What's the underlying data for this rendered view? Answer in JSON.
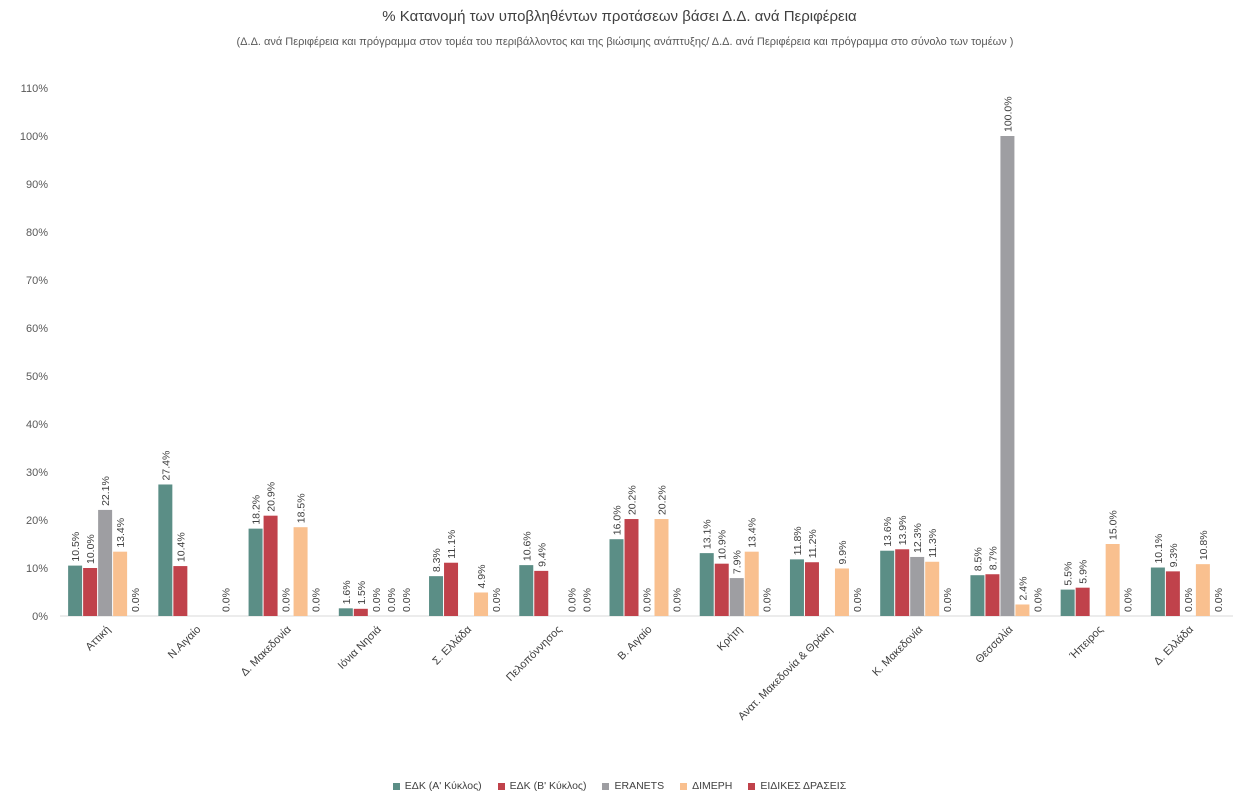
{
  "chart_data": {
    "type": "bar",
    "title": "% Κατανομή των υποβληθέντων προτάσεων βάσει Δ.Δ. ανά Περιφέρεια",
    "subtitle": "(Δ.Δ. ανά Περιφέρεια και πρόγραμμα στον τομέα του περιβάλλοντος και της βιώσιμης ανάπτυξης/ Δ.Δ. ανά Περιφέρεια και πρόγραμμα στο σύνολο των τομέων )",
    "categories": [
      "Αττική",
      "Ν.Αιγαίο",
      "Δ. Μακεδονία",
      "Ιόνια Νησιά",
      "Σ. Ελλάδα",
      "Πελοπόννησος",
      "Β. Αιγαίο",
      "Κρήτη",
      "Ανατ. Μακεδονία & Θράκη",
      "Κ. Μακεδονία",
      "Θεσσαλία",
      "Ήπειρος",
      "Δ. Ελλάδα"
    ],
    "series": [
      {
        "name": "ΕΔΚ (Α' Κύκλος)",
        "color": "#5B8E86",
        "values": [
          10.5,
          27.4,
          18.2,
          1.6,
          8.3,
          10.6,
          16.0,
          13.1,
          11.8,
          13.6,
          8.5,
          5.5,
          10.1
        ]
      },
      {
        "name": "ΕΔΚ (Β' Κύκλος)",
        "color": "#C0424B",
        "values": [
          10.0,
          10.4,
          20.9,
          1.5,
          11.1,
          9.4,
          20.2,
          10.9,
          11.2,
          13.9,
          8.7,
          5.9,
          9.3
        ]
      },
      {
        "name": "ERANETS",
        "color": "#9E9EA2",
        "values": [
          22.1,
          null,
          0.0,
          0.0,
          null,
          null,
          0.0,
          7.9,
          null,
          12.3,
          100.0,
          null,
          0.0
        ]
      },
      {
        "name": "ΔΙΜΕΡΗ",
        "color": "#F9C08F",
        "values": [
          13.4,
          null,
          18.5,
          0.0,
          4.9,
          0.0,
          20.2,
          13.4,
          9.9,
          11.3,
          2.4,
          15.0,
          10.8
        ]
      },
      {
        "name": "ΕΙΔΙΚΕΣ ΔΡΑΣΕΙΣ",
        "color": "#C0424B",
        "values": [
          0.0,
          0.0,
          0.0,
          0.0,
          0.0,
          0.0,
          0.0,
          0.0,
          0.0,
          0.0,
          0.0,
          0.0,
          0.0
        ]
      }
    ],
    "ylim": [
      0,
      110
    ],
    "yticks": [
      "0%",
      "10%",
      "20%",
      "30%",
      "40%",
      "50%",
      "60%",
      "70%",
      "80%",
      "90%",
      "100%",
      "110%"
    ],
    "value_suffix": "%",
    "grid": false,
    "legend_position": "bottom"
  }
}
